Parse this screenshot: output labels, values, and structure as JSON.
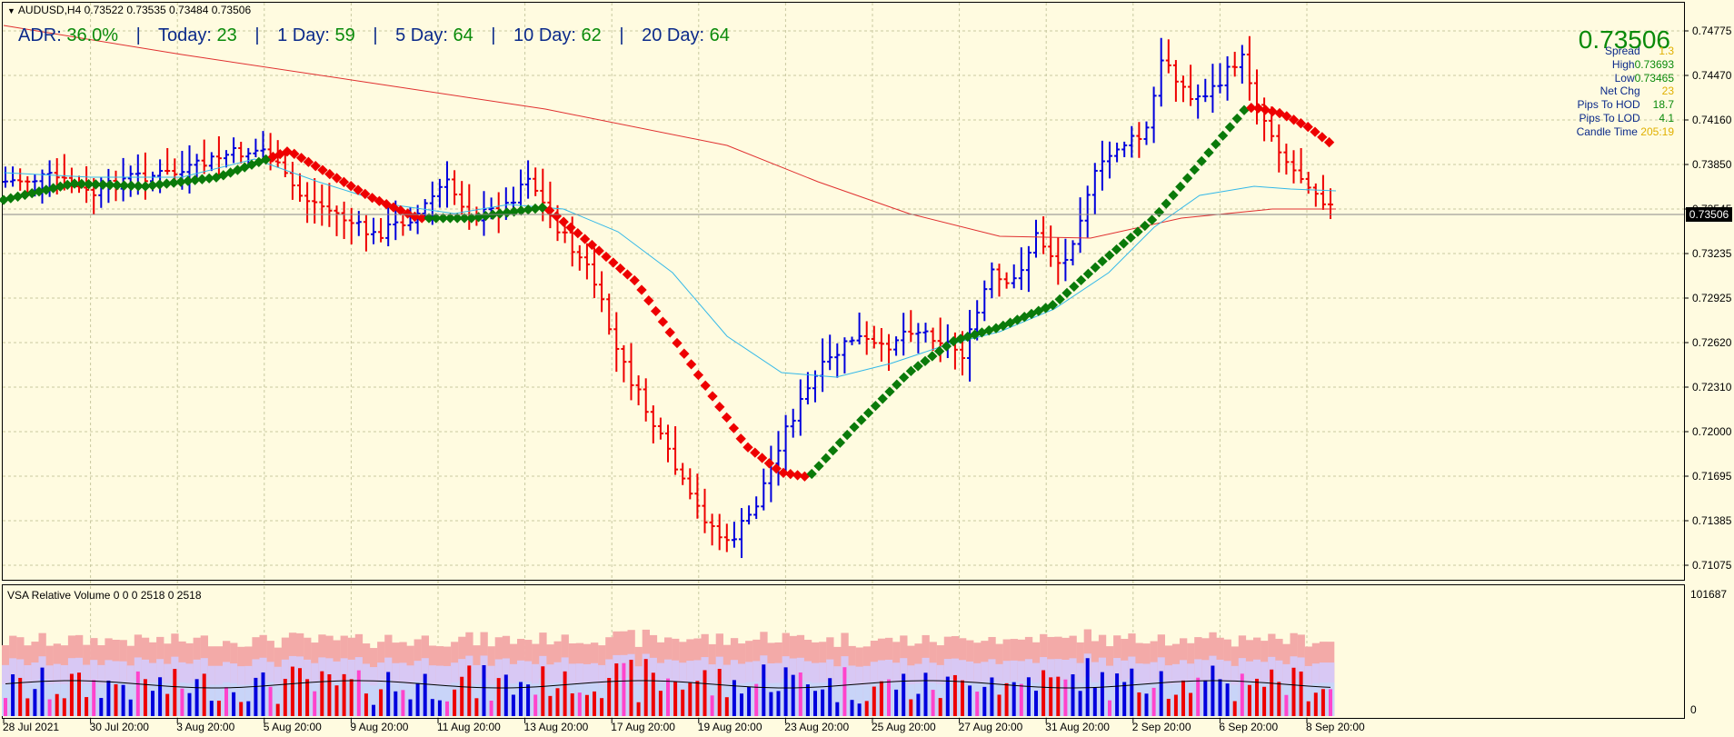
{
  "header": {
    "symbol_line": "AUDUSD,H4  0.73522 0.73535 0.73484 0.73506",
    "adr_label": "ADR:",
    "adr_value": "36.0%",
    "today_label": "Today:",
    "today_value": "23",
    "d1_label": "1 Day:",
    "d1_value": "59",
    "d5_label": "5 Day:",
    "d5_value": "64",
    "d10_label": "10 Day:",
    "d10_value": "62",
    "d20_label": "20 Day:",
    "d20_value": "64"
  },
  "info_panel": {
    "price": "0.73506",
    "spread_label": "Spread",
    "spread_value": "1.3",
    "high_label": "High",
    "high_value": "0.73693",
    "low_label": "Low",
    "low_value": "0.73465",
    "netchg_label": "Net Chg",
    "netchg_value": "23",
    "pips_hod_label": "Pips To HOD",
    "pips_hod_value": "18.7",
    "pips_lod_label": "Pips To LOD",
    "pips_lod_value": "4.1",
    "candle_label": "Candle Time",
    "candle_value": "205:19"
  },
  "volume_panel": {
    "title": "VSA Relative Volume 0 0 0 2518 0 2518",
    "axis_max": "101687",
    "axis_min": "0"
  },
  "price_axis": {
    "labels": [
      "0.74775",
      "0.74470",
      "0.74160",
      "0.73850",
      "0.73545",
      "0.73235",
      "0.72925",
      "0.72620",
      "0.72310",
      "0.72000",
      "0.71695",
      "0.71385",
      "0.71075"
    ],
    "current": "0.73506"
  },
  "time_axis": {
    "labels": [
      "28 Jul 2021",
      "30 Jul 20:00",
      "3 Aug 20:00",
      "5 Aug 20:00",
      "9 Aug 20:00",
      "11 Aug 20:00",
      "13 Aug 20:00",
      "17 Aug 20:00",
      "19 Aug 20:00",
      "23 Aug 20:00",
      "25 Aug 20:00",
      "27 Aug 20:00",
      "31 Aug 20:00",
      "2 Sep 20:00",
      "6 Sep 20:00",
      "8 Sep 20:00"
    ]
  },
  "colors": {
    "background": "#fffbe0",
    "bull_bar": "#0000dd",
    "bear_bar": "#ee0000",
    "ma_fast": "#33b8e8",
    "ma_slow": "#e03030",
    "trend_up": "#0a7a0a",
    "trend_down": "#ee0000",
    "grid": "#c8c8a0",
    "text_blue": "#0b2a8a",
    "text_green": "#0a8a0a",
    "text_yellow": "#e0b000"
  }
}
